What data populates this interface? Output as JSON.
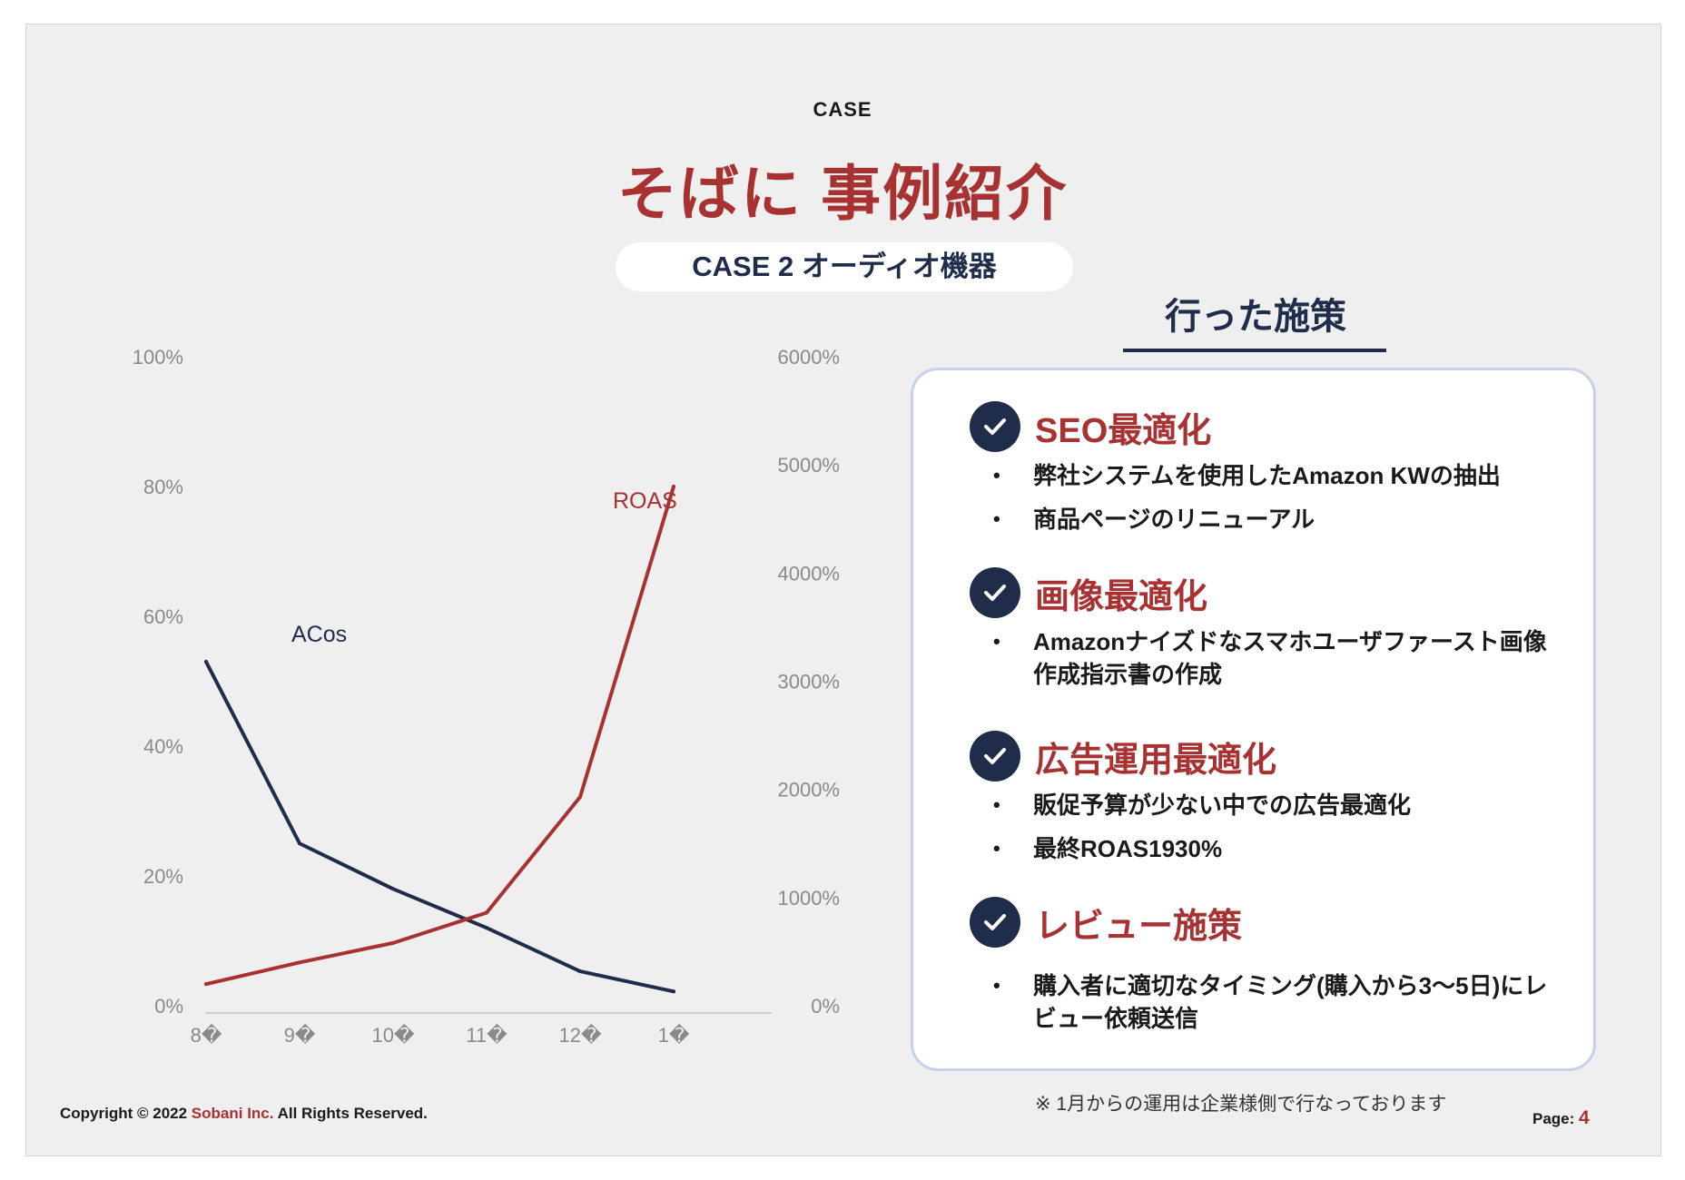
{
  "header": {
    "case_label": "CASE",
    "title": "そばに 事例紹介",
    "case_pill": "CASE 2 オーディオ機器"
  },
  "measures": {
    "title": "行った施策",
    "sections": [
      {
        "title": "SEO最適化",
        "bullets": [
          "弊社システムを使用したAmazon KWの抽出",
          "商品ページのリニューアル"
        ]
      },
      {
        "title": "画像最適化",
        "bullets": [
          "Amazonナイズドなスマホユーザファースト画像作成指示書の作成"
        ]
      },
      {
        "title": "広告運用最適化",
        "bullets": [
          "販促予算が少ない中での広告最適化",
          "最終ROAS1930%"
        ]
      },
      {
        "title": "レビュー施策",
        "bullets": [
          "購入者に適切なタイミング(購入から3〜5日)にレビュー依頼送信"
        ]
      }
    ],
    "note": "※ 1月からの運用は企業様側で行なっております"
  },
  "footer": {
    "copyright_prefix": "Copyright © 2022 ",
    "brand": "Sobani Inc.",
    "copyright_suffix": " All Rights Reserved.",
    "page_label": "Page:",
    "page_number": "4"
  },
  "colors": {
    "accent_red": "#a83232",
    "navy": "#1f2d4a",
    "panel_border": "#c4d1ea"
  },
  "chart_data": {
    "type": "line",
    "categories": [
      "8�",
      "9�",
      "10�",
      "11�",
      "12�",
      "1�"
    ],
    "series": [
      {
        "name": "ACos",
        "axis": "left",
        "color": "#1f2d4a",
        "values": [
          53,
          25,
          18,
          12,
          5.3,
          2.2
        ]
      },
      {
        "name": "ROAS",
        "axis": "right",
        "color": "#a83232",
        "values": [
          200,
          400,
          580,
          860,
          1930,
          4800
        ]
      }
    ],
    "y_left": {
      "ticks": [
        "0%",
        "20%",
        "40%",
        "60%",
        "80%",
        "100%"
      ],
      "range": [
        0,
        100
      ]
    },
    "y_right": {
      "ticks": [
        "0%",
        "1000%",
        "2000%",
        "3000%",
        "4000%",
        "5000%",
        "6000%"
      ],
      "range": [
        0,
        6000
      ]
    },
    "grid": false
  }
}
